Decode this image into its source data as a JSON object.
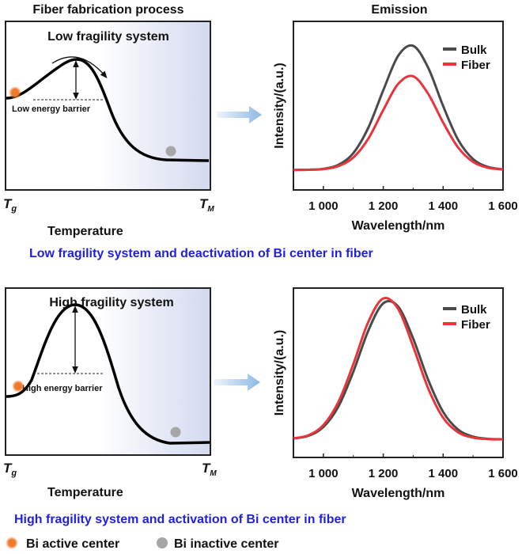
{
  "header": {
    "left_title": "Fiber fabrication process",
    "right_title": "Emission"
  },
  "panels": [
    {
      "system_title": "Low fragility system",
      "barrier_label": "Low energy barrier",
      "x_start": "T",
      "x_start_sub": "g",
      "x_end": "T",
      "x_end_sub": "M",
      "x_axis_label": "Temperature",
      "caption": "Low fragility system and deactivation of Bi center in fiber"
    },
    {
      "system_title": "High fragility system",
      "barrier_label": "High energy barrier",
      "x_start": "T",
      "x_start_sub": "g",
      "x_end": "T",
      "x_end_sub": "M",
      "x_axis_label": "Temperature",
      "caption": "High fragility system and activation of Bi center in fiber"
    }
  ],
  "legend": {
    "active": "Bi active center",
    "inactive": "Bi inactive center",
    "active_color": "#ee7a2e",
    "inactive_color": "#a6a6a6"
  },
  "colors": {
    "bulk": "#4a4a4a",
    "fiber": "#e8353b",
    "caption": "#1f1fe0",
    "arrow": "#8db8e6"
  },
  "chart_data": [
    {
      "type": "line",
      "title": "Emission",
      "xlabel": "Wavelength/nm",
      "ylabel": "Intensity/(a.u.)",
      "xlim": [
        900,
        1600
      ],
      "ylim": [
        -0.16,
        1.19
      ],
      "xticks": [
        1000,
        1200,
        1400,
        1600
      ],
      "xtick_labels": [
        "1 000",
        "1 200",
        "1 400",
        "1 600"
      ],
      "minor_xticks": [
        1100,
        1300,
        1500
      ],
      "legend_position": "top-right",
      "x": [
        900,
        950,
        1000,
        1050,
        1100,
        1150,
        1200,
        1250,
        1300,
        1350,
        1400,
        1450,
        1500,
        1550,
        1600
      ],
      "series": [
        {
          "name": "Bulk",
          "values": [
            0.0,
            0.002,
            0.009,
            0.041,
            0.135,
            0.338,
            0.638,
            0.915,
            0.994,
            0.819,
            0.512,
            0.242,
            0.087,
            0.024,
            0.005
          ]
        },
        {
          "name": "Fiber",
          "values": [
            0.0,
            0.002,
            0.007,
            0.031,
            0.1,
            0.25,
            0.48,
            0.69,
            0.75,
            0.61,
            0.38,
            0.18,
            0.065,
            0.018,
            0.004
          ]
        }
      ]
    },
    {
      "type": "line",
      "xlabel": "Wavelength/nm",
      "ylabel": "Intensity/(a.u.)",
      "xlim": [
        900,
        1600
      ],
      "ylim": [
        -0.13,
        1.09
      ],
      "xticks": [
        1000,
        1200,
        1400,
        1600
      ],
      "xtick_labels": [
        "1 000",
        "1 200",
        "1 400",
        "1 600"
      ],
      "minor_xticks": [
        1100,
        1300,
        1500
      ],
      "legend_position": "top-right",
      "x": [
        900,
        950,
        1000,
        1050,
        1100,
        1150,
        1200,
        1250,
        1300,
        1350,
        1400,
        1450,
        1500,
        1550,
        1600
      ],
      "series": [
        {
          "name": "Bulk",
          "values": [
            0.006,
            0.026,
            0.089,
            0.236,
            0.487,
            0.783,
            0.98,
            0.956,
            0.726,
            0.43,
            0.198,
            0.071,
            0.02,
            0.004,
            0.001
          ]
        },
        {
          "name": "Fiber",
          "values": [
            0.007,
            0.03,
            0.103,
            0.269,
            0.542,
            0.846,
            1.015,
            0.939,
            0.669,
            0.368,
            0.156,
            0.051,
            0.013,
            0.002,
            0.0
          ]
        }
      ]
    }
  ]
}
